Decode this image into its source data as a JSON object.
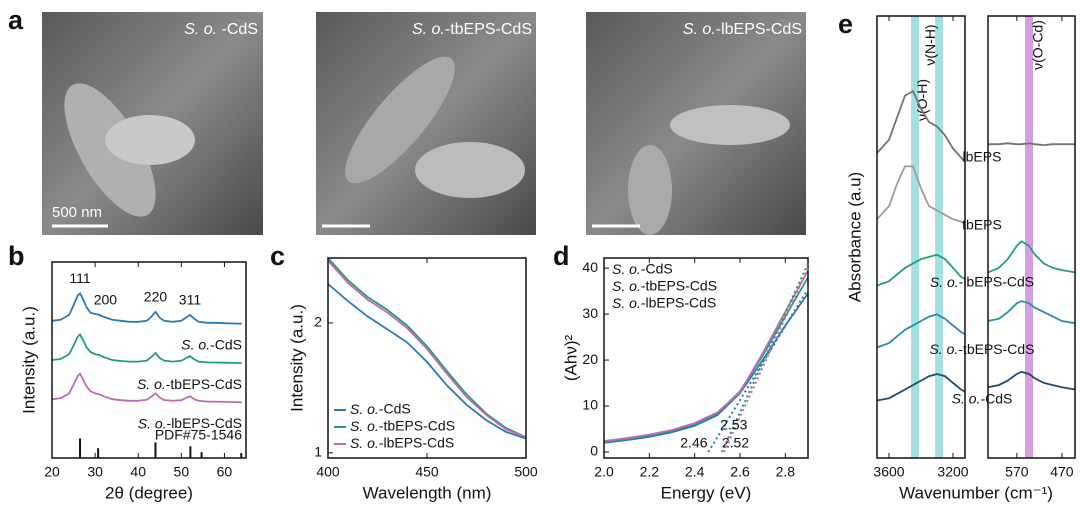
{
  "images": {
    "panel": "a",
    "items": [
      {
        "label": "S. o. -CdS",
        "scale_bar": "500 nm"
      },
      {
        "label": "S. o.-tbEPS-CdS"
      },
      {
        "label": "S. o.-lbEPS-CdS"
      }
    ]
  },
  "chart_data": [
    {
      "type": "line",
      "panel": "b",
      "xlabel": "2θ (degree)",
      "ylabel": "Intensity (a.u.)",
      "xlim": [
        20,
        65
      ],
      "xticks": [
        20,
        30,
        40,
        50,
        60
      ],
      "ylim": [
        0,
        10
      ],
      "x": [
        20,
        22,
        24,
        25,
        26,
        26.5,
        27,
        28,
        29,
        30,
        31,
        32,
        34,
        36,
        38,
        40,
        42,
        43,
        44,
        45,
        46,
        48,
        50,
        51,
        52,
        53,
        54,
        56,
        58,
        60,
        62,
        64
      ],
      "series": [
        {
          "name": "S. o.-CdS",
          "color": "#2a7ab8",
          "values": [
            7.0,
            7.05,
            7.3,
            7.8,
            8.3,
            8.4,
            8.2,
            7.7,
            7.4,
            7.35,
            7.3,
            7.2,
            7.05,
            7.0,
            6.95,
            6.95,
            7.0,
            7.2,
            7.45,
            7.15,
            7.0,
            6.95,
            7.0,
            7.15,
            7.3,
            7.1,
            6.95,
            6.9,
            6.9,
            6.88,
            6.86,
            6.85
          ]
        },
        {
          "name": "S. o.-tbEPS-CdS",
          "color": "#1e9e7a",
          "values": [
            5.0,
            5.05,
            5.3,
            5.75,
            6.2,
            6.3,
            6.1,
            5.65,
            5.4,
            5.3,
            5.25,
            5.15,
            5.0,
            4.95,
            4.92,
            4.92,
            4.97,
            5.15,
            5.35,
            5.1,
            4.97,
            4.92,
            4.96,
            5.08,
            5.2,
            5.03,
            4.92,
            4.88,
            4.87,
            4.86,
            4.85,
            4.84
          ]
        },
        {
          "name": "S. o.-lbEPS-CdS",
          "color": "#c468b4",
          "values": [
            3.0,
            3.05,
            3.3,
            3.75,
            4.2,
            4.3,
            4.1,
            3.65,
            3.4,
            3.3,
            3.25,
            3.15,
            3.0,
            2.95,
            2.92,
            2.92,
            2.97,
            3.12,
            3.3,
            3.08,
            2.96,
            2.92,
            2.95,
            3.05,
            3.15,
            3.0,
            2.92,
            2.88,
            2.87,
            2.86,
            2.85,
            2.84
          ]
        }
      ],
      "peak_labels": [
        {
          "label": "111",
          "x": 26.5
        },
        {
          "label": "200",
          "x": 31
        },
        {
          "label": "220",
          "x": 44
        },
        {
          "label": "311",
          "x": 52
        }
      ],
      "reference": {
        "label": "PDF#75-1546",
        "positions": [
          26.5,
          30.7,
          44,
          52.1,
          54.7,
          63.9
        ],
        "intensities": [
          1,
          0.5,
          0.8,
          0.6,
          0.3,
          0.25
        ]
      }
    },
    {
      "type": "line",
      "panel": "c",
      "xlabel": "Wavelength (nm)",
      "ylabel": "Intensity (a.u.)",
      "xlim": [
        400,
        500
      ],
      "xticks": [
        400,
        450,
        500
      ],
      "ylim": [
        0.96,
        2.5
      ],
      "yticks": [
        1,
        2
      ],
      "legend": "lower left",
      "x": [
        400,
        410,
        420,
        430,
        440,
        450,
        460,
        470,
        480,
        490,
        500
      ],
      "series": [
        {
          "name": "S. o.-CdS",
          "color": "#2a7ab8",
          "values": [
            2.3,
            2.17,
            2.05,
            1.95,
            1.85,
            1.7,
            1.52,
            1.37,
            1.25,
            1.16,
            1.11
          ]
        },
        {
          "name": "S. o.-tbEPS-CdS",
          "color": "#1e9e7a",
          "values": [
            2.5,
            2.33,
            2.2,
            2.1,
            1.98,
            1.82,
            1.63,
            1.45,
            1.3,
            1.19,
            1.12
          ]
        },
        {
          "name": "S. o.-lbEPS-CdS",
          "color": "#c468b4",
          "values": [
            2.48,
            2.31,
            2.18,
            2.08,
            1.96,
            1.8,
            1.61,
            1.43,
            1.29,
            1.18,
            1.12
          ]
        }
      ]
    },
    {
      "type": "line",
      "panel": "d",
      "xlabel": "Energy (eV)",
      "ylabel": "(Ahν)²",
      "xlim": [
        2.0,
        2.9
      ],
      "xticks": [
        {
          "value": 2,
          "label": "2.0"
        },
        2.2,
        2.4,
        2.6,
        2.8
      ],
      "ylim": [
        -1.3,
        42.2
      ],
      "yticks": [
        0,
        10,
        20,
        30,
        40
      ],
      "legend": "upper left",
      "x": [
        2.0,
        2.1,
        2.2,
        2.3,
        2.4,
        2.5,
        2.6,
        2.7,
        2.8,
        2.9
      ],
      "series": [
        {
          "name": "S. o.-CdS",
          "color": "#2a7ab8",
          "values": [
            2.0,
            2.6,
            3.3,
            4.3,
            5.7,
            8.0,
            12.8,
            20.0,
            27.5,
            34.5
          ],
          "fit": {
            "x": [
              2.46,
              2.9
            ],
            "y": [
              0,
              35.5
            ]
          }
        },
        {
          "name": "S. o.-tbEPS-CdS",
          "color": "#1e9e7a",
          "values": [
            2.2,
            2.8,
            3.6,
            4.6,
            6.1,
            8.4,
            13.2,
            21.0,
            29.5,
            38.0
          ],
          "fit": {
            "x": [
              2.52,
              2.9
            ],
            "y": [
              0,
              41
            ]
          }
        },
        {
          "name": "S. o.-lbEPS-CdS",
          "color": "#c468b4",
          "values": [
            2.4,
            3.0,
            3.8,
            4.8,
            6.3,
            8.6,
            13.0,
            21.5,
            30.5,
            39.5
          ],
          "fit": {
            "x": [
              2.53,
              2.9
            ],
            "y": [
              0,
              40
            ]
          }
        }
      ]
    },
    {
      "type": "line",
      "panel": "e",
      "xlabel": "Wavenumber (cm⁻¹)",
      "ylabel": "Absorbance (a.u)",
      "ylim": [
        0,
        10
      ],
      "series": [
        {
          "name": "lbEPS",
          "color": "#7a7468"
        },
        {
          "name": "tbEPS",
          "color": "#a39b92"
        },
        {
          "name": "S. o.-lbEPS-CdS",
          "color": "#1f9e8a"
        },
        {
          "name": "S. o.-tbEPS-CdS",
          "color": "#2b8cb0"
        },
        {
          "name": "S. o.-CdS",
          "color": "#1d4e6a"
        }
      ],
      "subplots": [
        {
          "xlim": [
            3675,
            3125
          ],
          "xticks": [
            3600,
            3200
          ],
          "x": [
            3675,
            3600,
            3550,
            3500,
            3450,
            3400,
            3350,
            3300,
            3250,
            3200,
            3150,
            3125
          ],
          "bands": [
            {
              "center": 3437,
              "label": "ν(O-H)",
              "color": "#8fd8d8"
            },
            {
              "center": 3287,
              "label": "ν(N-H)",
              "color": "#8fd8d8"
            }
          ],
          "values": [
            [
              6.9,
              7.2,
              7.7,
              8.2,
              8.3,
              7.9,
              7.6,
              7.5,
              7.3,
              7.0,
              6.8,
              6.7
            ],
            [
              5.4,
              5.7,
              6.2,
              6.6,
              6.6,
              6.1,
              5.7,
              5.6,
              5.5,
              5.4,
              5.35,
              5.3
            ],
            [
              3.9,
              4.0,
              4.15,
              4.3,
              4.4,
              4.5,
              4.55,
              4.6,
              4.5,
              4.3,
              4.1,
              4.05
            ],
            [
              2.5,
              2.6,
              2.75,
              2.9,
              3.0,
              3.1,
              3.2,
              3.25,
              3.15,
              3.0,
              2.85,
              2.8
            ],
            [
              1.3,
              1.35,
              1.45,
              1.55,
              1.65,
              1.75,
              1.85,
              1.9,
              1.85,
              1.7,
              1.55,
              1.5
            ]
          ]
        },
        {
          "xlim": [
            634,
            441
          ],
          "xticks": [
            570,
            470
          ],
          "x": [
            634,
            610,
            590,
            570,
            560,
            543,
            530,
            510,
            490,
            470,
            441
          ],
          "bands": [
            {
              "center": 543,
              "label": "ν(O-Cd)",
              "color": "#cc88d8"
            }
          ],
          "values": [
            [
              7.1,
              7.1,
              7.12,
              7.1,
              7.1,
              7.12,
              7.1,
              7.08,
              7.1,
              7.1,
              7.1
            ],
            [
              null,
              null,
              null,
              null,
              null,
              null,
              null,
              null,
              null,
              null,
              null
            ],
            [
              4.2,
              4.3,
              4.5,
              4.8,
              4.9,
              4.8,
              4.6,
              4.4,
              4.3,
              4.25,
              4.2
            ],
            [
              3.1,
              3.15,
              3.3,
              3.5,
              3.55,
              3.5,
              3.4,
              3.3,
              3.2,
              3.1,
              3.05
            ],
            [
              1.6,
              1.65,
              1.75,
              1.9,
              1.95,
              1.9,
              1.8,
              1.7,
              1.65,
              1.6,
              1.55
            ]
          ]
        }
      ]
    }
  ]
}
